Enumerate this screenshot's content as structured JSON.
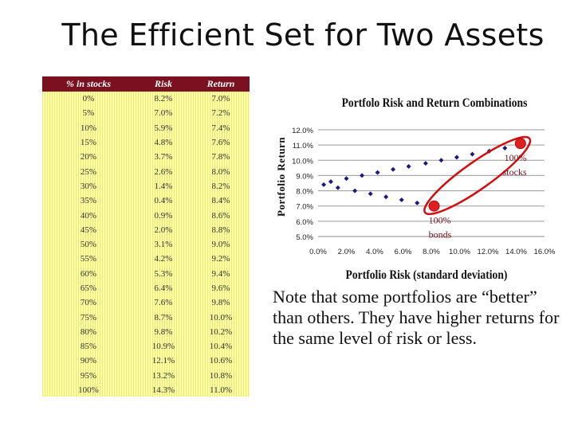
{
  "slide": {
    "title": "The Efficient Set for Two Assets"
  },
  "table": {
    "headers": [
      "% in stocks",
      "Risk",
      "Return"
    ],
    "rows": [
      [
        "0%",
        "8.2%",
        "7.0%"
      ],
      [
        "5%",
        "7.0%",
        "7.2%"
      ],
      [
        "10%",
        "5.9%",
        "7.4%"
      ],
      [
        "15%",
        "4.8%",
        "7.6%"
      ],
      [
        "20%",
        "3.7%",
        "7.8%"
      ],
      [
        "25%",
        "2.6%",
        "8.0%"
      ],
      [
        "30%",
        "1.4%",
        "8.2%"
      ],
      [
        "35%",
        "0.4%",
        "8.4%"
      ],
      [
        "40%",
        "0.9%",
        "8.6%"
      ],
      [
        "45%",
        "2.0%",
        "8.8%"
      ],
      [
        "50%",
        "3.1%",
        "9.0%"
      ],
      [
        "55%",
        "4.2%",
        "9.2%"
      ],
      [
        "60%",
        "5.3%",
        "9.4%"
      ],
      [
        "65%",
        "6.4%",
        "9.6%"
      ],
      [
        "70%",
        "7.6%",
        "9.8%"
      ],
      [
        "75%",
        "8.7%",
        "10.0%"
      ],
      [
        "80%",
        "9.8%",
        "10.2%"
      ],
      [
        "85%",
        "10.9%",
        "10.4%"
      ],
      [
        "90%",
        "12.1%",
        "10.6%"
      ],
      [
        "95%",
        "13.2%",
        "10.8%"
      ],
      [
        "100%",
        "14.3%",
        "11.0%"
      ]
    ]
  },
  "note": "Note that some portfolios are “better” than others. They have higher returns for the same level of risk or less.",
  "chart_data": {
    "type": "scatter",
    "title": "Portfolo Risk and Return Combinations",
    "xlabel": "Portfolio Risk (standard deviation)",
    "ylabel": "Portfolio Return",
    "xlim": [
      0,
      16
    ],
    "ylim": [
      5,
      12
    ],
    "x_ticks": [
      "0.0%",
      "2.0%",
      "4.0%",
      "6.0%",
      "8.0%",
      "10.0%",
      "12.0%",
      "14.0%",
      "16.0%"
    ],
    "y_ticks": [
      "5.0%",
      "6.0%",
      "7.0%",
      "8.0%",
      "9.0%",
      "10.0%",
      "11.0%",
      "12.0%"
    ],
    "grid": "horizontal",
    "points": [
      [
        8.2,
        7.0
      ],
      [
        7.0,
        7.2
      ],
      [
        5.9,
        7.4
      ],
      [
        4.8,
        7.6
      ],
      [
        3.7,
        7.8
      ],
      [
        2.6,
        8.0
      ],
      [
        1.4,
        8.2
      ],
      [
        0.4,
        8.4
      ],
      [
        0.9,
        8.6
      ],
      [
        2.0,
        8.8
      ],
      [
        3.1,
        9.0
      ],
      [
        4.2,
        9.2
      ],
      [
        5.3,
        9.4
      ],
      [
        6.4,
        9.6
      ],
      [
        7.6,
        9.8
      ],
      [
        8.7,
        10.0
      ],
      [
        9.8,
        10.2
      ],
      [
        10.9,
        10.4
      ],
      [
        12.1,
        10.6
      ],
      [
        13.2,
        10.8
      ],
      [
        14.3,
        11.0
      ]
    ],
    "annotations": [
      {
        "text": "100% stocks",
        "lines": [
          "100%",
          "stocks"
        ],
        "x": 12.6,
        "y": 11.1
      },
      {
        "text": "100% bonds",
        "lines": [
          "100%",
          "bonds"
        ],
        "x": 7.3,
        "y": 6.9
      }
    ],
    "colors": {
      "points": "#1a1a80",
      "ellipse": "#d01010",
      "annotation": "#7a1020",
      "marker": "#e02020"
    }
  }
}
